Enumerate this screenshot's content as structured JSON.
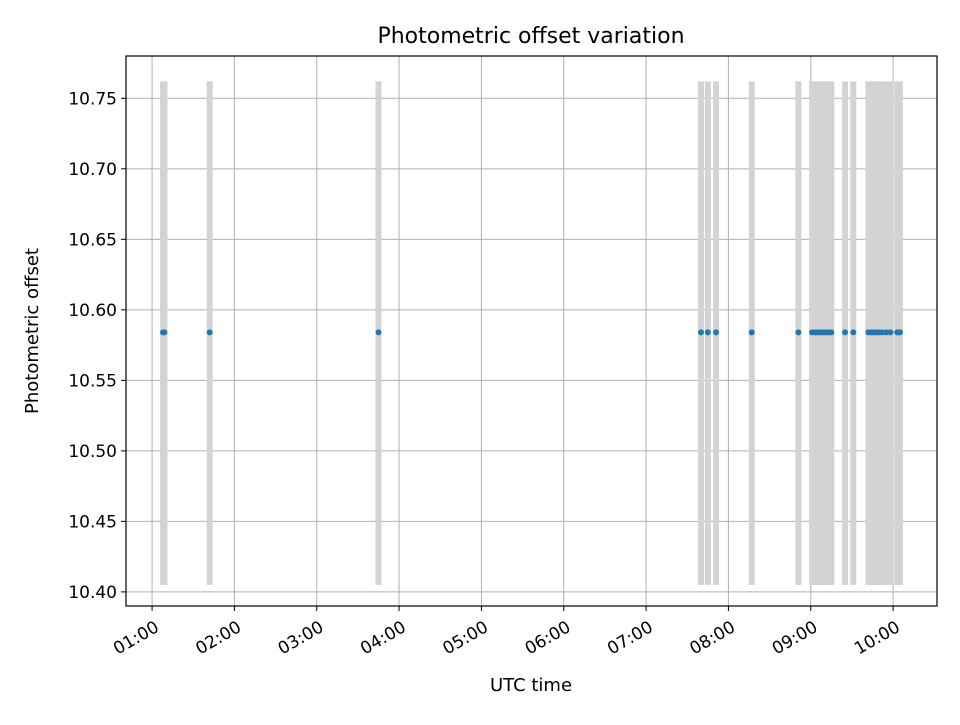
{
  "chart_data": {
    "type": "scatter",
    "title": "Photometric offset variation",
    "xlabel": "UTC time",
    "ylabel": "Photometric offset",
    "x_unit": "time (HH:MM)",
    "xlim": [
      "00:41",
      "10:32"
    ],
    "ylim": [
      10.39,
      10.78
    ],
    "x_ticks": [
      "01:00",
      "02:00",
      "03:00",
      "04:00",
      "05:00",
      "06:00",
      "07:00",
      "08:00",
      "09:00",
      "10:00"
    ],
    "y_ticks": [
      "10.40",
      "10.45",
      "10.50",
      "10.55",
      "10.60",
      "10.65",
      "10.70",
      "10.75"
    ],
    "grid": true,
    "legend": "none",
    "point_color": "#1f77b4",
    "bar_color": "#d3d3d3",
    "error_range": [
      10.405,
      10.762
    ],
    "series": [
      {
        "x": [
          "01:08",
          "01:09",
          "01:42",
          "03:45",
          "07:40",
          "07:45",
          "07:51",
          "08:17",
          "08:51",
          "09:01",
          "09:03",
          "09:05",
          "09:07",
          "09:09",
          "09:11",
          "09:13",
          "09:15",
          "09:25",
          "09:31",
          "09:42",
          "09:44",
          "09:46",
          "09:48",
          "09:50",
          "09:52",
          "09:55",
          "09:58",
          "10:03",
          "10:05"
        ],
        "y": [
          10.584,
          10.584,
          10.584,
          10.584,
          10.584,
          10.584,
          10.584,
          10.584,
          10.584,
          10.584,
          10.584,
          10.584,
          10.584,
          10.584,
          10.584,
          10.584,
          10.584,
          10.584,
          10.584,
          10.584,
          10.584,
          10.584,
          10.584,
          10.584,
          10.584,
          10.584,
          10.584,
          10.584,
          10.584
        ]
      }
    ]
  }
}
